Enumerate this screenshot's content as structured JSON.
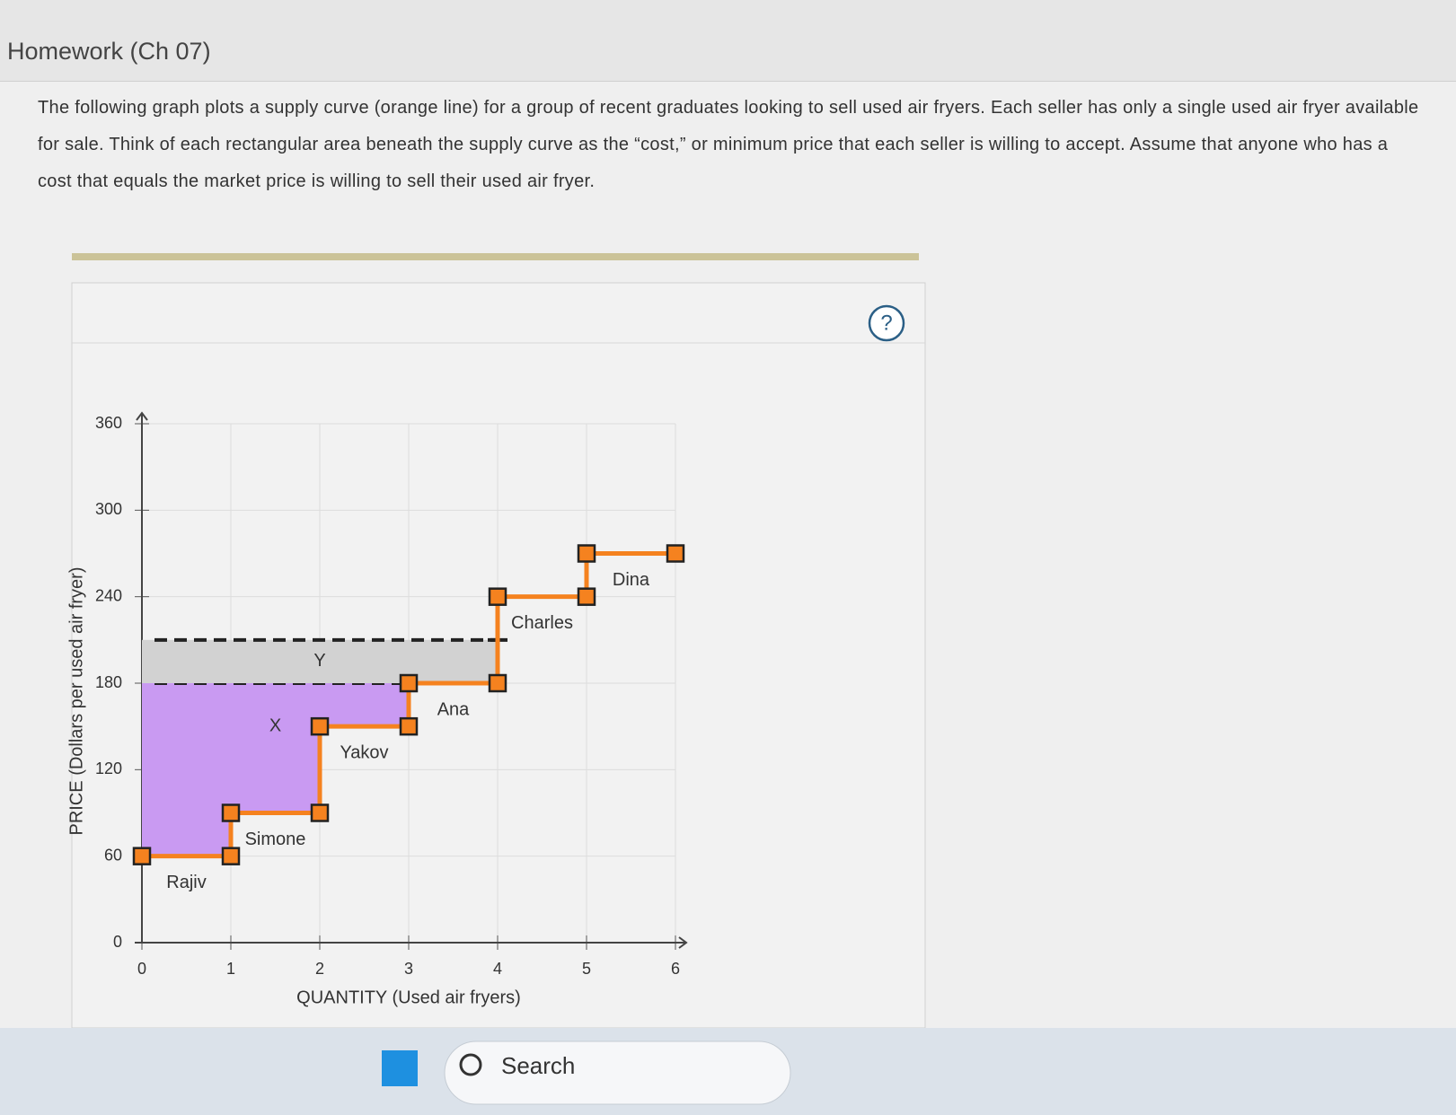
{
  "header": {
    "title": "Homework (Ch 07)"
  },
  "question": {
    "text": "The following graph plots a supply curve (orange line) for a group of recent graduates looking to sell used air fryers. Each seller has only a single used air fryer available for sale. Think of each rectangular area beneath the supply curve as the “cost,” or minimum price that each seller is willing to accept. Assume that anyone who has a cost that equals the market price is willing to sell their used air fryer."
  },
  "help": "?",
  "chart_data": {
    "type": "supply-step",
    "xlabel": "QUANTITY (Used air fryers)",
    "ylabel": "PRICE (Dollars per used air fryer)",
    "categories": [
      "Rajiv",
      "Simone",
      "Yakov",
      "Ana",
      "Charles",
      "Dina"
    ],
    "values": [
      60,
      90,
      150,
      180,
      240,
      270
    ],
    "color": "#f5821f",
    "areas": [
      {
        "label": "X",
        "price": 180,
        "color": "#c99af2"
      },
      {
        "label": "Y",
        "price": 210,
        "color": "#d2d2d2"
      }
    ],
    "xlim": [
      0,
      6
    ],
    "ylim": [
      0,
      360
    ],
    "xticks": [
      0,
      1,
      2,
      3,
      4,
      5,
      6
    ],
    "yticks": [
      0,
      60,
      120,
      180,
      240,
      300,
      360
    ],
    "grid": true
  },
  "taskbar": {
    "search": "Search"
  }
}
